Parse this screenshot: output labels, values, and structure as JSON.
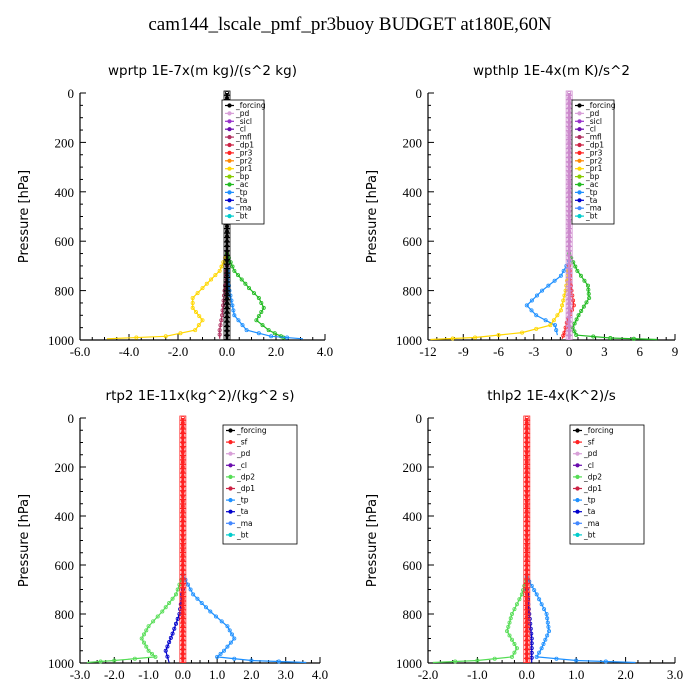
{
  "title": "cam144_lscale_pmf_pr3buoy  BUDGET at180E,60N",
  "chart_data": [
    {
      "type": "line",
      "title": "wprtp  1E-7x(m kg)/(s^2 kg)",
      "ylabel": "Pressure [hPa]",
      "xlim": [
        -6.0,
        4.0
      ],
      "xticks": [
        "-6.0",
        "-4.0",
        "-2.0",
        "0.0",
        "2.0",
        "4.0"
      ],
      "ylim": [
        1000,
        0
      ],
      "yticks": [
        "0",
        "200",
        "400",
        "600",
        "800",
        "1000"
      ],
      "legend": [
        "_forcing",
        "_pd",
        "_sicl",
        "_cl",
        "_mfl",
        "_dp1",
        "_pr3",
        "_pr2",
        "_pr1",
        "_bp",
        "_ac",
        "_tp",
        "_ta",
        "_ma",
        "_bt"
      ],
      "series": [
        {
          "name": "_forcing",
          "color": "#000000",
          "points": [
            [
              0,
              0
            ],
            [
              0,
              500
            ],
            [
              0,
              700
            ],
            [
              0,
              850
            ],
            [
              0,
              1000
            ]
          ]
        },
        {
          "name": "_pr1",
          "color": "#ffd700",
          "points": [
            [
              0,
              650
            ],
            [
              -0.3,
              720
            ],
            [
              -1.0,
              790
            ],
            [
              -1.4,
              830
            ],
            [
              -1.4,
              870
            ],
            [
              -1.0,
              920
            ],
            [
              -1.3,
              960
            ],
            [
              -2.5,
              985
            ],
            [
              -4.9,
              995
            ]
          ]
        },
        {
          "name": "_ac",
          "color": "#22bb22",
          "points": [
            [
              0,
              650
            ],
            [
              0.3,
              720
            ],
            [
              0.9,
              790
            ],
            [
              1.3,
              830
            ],
            [
              1.5,
              870
            ],
            [
              1.2,
              920
            ],
            [
              1.7,
              960
            ],
            [
              2.2,
              985
            ],
            [
              2.4,
              995
            ]
          ]
        },
        {
          "name": "_tp",
          "color": "#1e90ff",
          "points": [
            [
              0,
              700
            ],
            [
              0.1,
              800
            ],
            [
              0.3,
              900
            ],
            [
              0.8,
              960
            ],
            [
              1.8,
              985
            ],
            [
              3.1,
              995
            ]
          ]
        },
        {
          "name": "_mfl",
          "color": "#b03060",
          "points": [
            [
              0,
              700
            ],
            [
              -0.1,
              800
            ],
            [
              -0.2,
              900
            ],
            [
              -0.3,
              960
            ],
            [
              -0.3,
              995
            ]
          ]
        }
      ]
    },
    {
      "type": "line",
      "title": "wpthlp  1E-4x(m K)/s^2",
      "ylabel": "Pressure [hPa]",
      "xlim": [
        -12,
        9
      ],
      "xticks": [
        "-12",
        "-9",
        "-6",
        "-3",
        "0",
        "3",
        "6",
        "9"
      ],
      "ylim": [
        1000,
        0
      ],
      "yticks": [
        "0",
        "200",
        "400",
        "600",
        "800",
        "1000"
      ],
      "legend": [
        "_forcing",
        "_pd",
        "_sicl",
        "_cl",
        "_mfl",
        "_dp1",
        "_pr3",
        "_pr2",
        "_pr1",
        "_bp",
        "_ac",
        "_tp",
        "_ta",
        "_ma",
        "_bt"
      ],
      "series": [
        {
          "name": "_forcing",
          "color": "#cc88cc",
          "points": [
            [
              0,
              0
            ],
            [
              0,
              500
            ],
            [
              0,
              700
            ],
            [
              0,
              850
            ],
            [
              0,
              1000
            ]
          ]
        },
        {
          "name": "_tp",
          "color": "#1e90ff",
          "points": [
            [
              0,
              680
            ],
            [
              -0.7,
              740
            ],
            [
              -2.3,
              800
            ],
            [
              -3.6,
              860
            ],
            [
              -2.8,
              900
            ],
            [
              -1.2,
              940
            ],
            [
              -1.0,
              980
            ]
          ]
        },
        {
          "name": "_ac",
          "color": "#22bb22",
          "points": [
            [
              0,
              650
            ],
            [
              0.7,
              720
            ],
            [
              1.6,
              780
            ],
            [
              1.7,
              830
            ],
            [
              0.8,
              900
            ],
            [
              0.3,
              950
            ],
            [
              0.6,
              980
            ],
            [
              3.5,
              992
            ],
            [
              7.5,
              998
            ]
          ]
        },
        {
          "name": "_pr1",
          "color": "#ffd700",
          "points": [
            [
              0,
              700
            ],
            [
              -0.3,
              800
            ],
            [
              -0.7,
              880
            ],
            [
              -1.6,
              940
            ],
            [
              -4,
              970
            ],
            [
              -8,
              990
            ],
            [
              -11.8,
              998
            ]
          ]
        },
        {
          "name": "_mfl",
          "color": "#ff2222",
          "points": [
            [
              0,
              700
            ],
            [
              0.2,
              800
            ],
            [
              0.4,
              860
            ],
            [
              -0.2,
              930
            ],
            [
              -0.4,
              970
            ],
            [
              -0.6,
              995
            ]
          ]
        }
      ]
    },
    {
      "type": "line",
      "title": "rtp2  1E-11x(kg^2)/(kg^2 s)",
      "ylabel": "Pressure [hPa]",
      "xlim": [
        -3.0,
        4.0
      ],
      "xticks": [
        "-3.0",
        "-2.0",
        "-1.0",
        "0.0",
        "1.0",
        "2.0",
        "3.0",
        "4.0"
      ],
      "ylim": [
        1000,
        0
      ],
      "yticks": [
        "0",
        "200",
        "400",
        "600",
        "800",
        "1000"
      ],
      "legend": [
        "_forcing",
        "_sf",
        "_pd",
        "_cl",
        "_dp2",
        "_dp1",
        "_tp",
        "_ta",
        "_ma",
        "_bt"
      ],
      "series": [
        {
          "name": "_forcing",
          "color": "#ff2222",
          "points": [
            [
              0,
              0
            ],
            [
              0,
              500
            ],
            [
              0,
              700
            ],
            [
              0,
              850
            ],
            [
              0,
              1000
            ]
          ]
        },
        {
          "name": "_dp2",
          "color": "#55dd55",
          "points": [
            [
              0,
              640
            ],
            [
              -0.2,
              720
            ],
            [
              -0.6,
              790
            ],
            [
              -1.0,
              850
            ],
            [
              -1.2,
              900
            ],
            [
              -1.0,
              950
            ],
            [
              -0.8,
              975
            ],
            [
              -2.0,
              990
            ],
            [
              -2.8,
              998
            ]
          ]
        },
        {
          "name": "_tp",
          "color": "#1e90ff",
          "points": [
            [
              0,
              640
            ],
            [
              0.3,
              720
            ],
            [
              0.8,
              790
            ],
            [
              1.3,
              850
            ],
            [
              1.5,
              900
            ],
            [
              1.2,
              950
            ],
            [
              1.0,
              975
            ],
            [
              2.0,
              990
            ],
            [
              3.6,
              998
            ]
          ]
        },
        {
          "name": "_ta",
          "color": "#0000cc",
          "points": [
            [
              0,
              700
            ],
            [
              -0.1,
              800
            ],
            [
              -0.3,
              880
            ],
            [
              -0.5,
              950
            ],
            [
              -0.4,
              998
            ]
          ]
        }
      ]
    },
    {
      "type": "line",
      "title": "thlp2  1E-4x(K^2)/s",
      "ylabel": "Pressure [hPa]",
      "xlim": [
        -2.0,
        3.0
      ],
      "xticks": [
        "-2.0",
        "-1.0",
        "0.0",
        "1.0",
        "2.0",
        "3.0"
      ],
      "ylim": [
        1000,
        0
      ],
      "yticks": [
        "0",
        "200",
        "400",
        "600",
        "800",
        "1000"
      ],
      "legend": [
        "_forcing",
        "_sf",
        "_pd",
        "_cl",
        "_dp2",
        "_dp1",
        "_tp",
        "_ta",
        "_ma",
        "_bt"
      ],
      "series": [
        {
          "name": "_forcing",
          "color": "#ff2222",
          "points": [
            [
              0,
              0
            ],
            [
              0,
              500
            ],
            [
              0,
              700
            ],
            [
              0,
              850
            ],
            [
              0,
              1000
            ]
          ]
        },
        {
          "name": "_dp2",
          "color": "#55dd55",
          "points": [
            [
              0,
              650
            ],
            [
              -0.1,
              720
            ],
            [
              -0.3,
              800
            ],
            [
              -0.4,
              870
            ],
            [
              -0.2,
              940
            ],
            [
              -0.3,
              975
            ],
            [
              -1.0,
              990
            ],
            [
              -1.9,
              998
            ]
          ]
        },
        {
          "name": "_tp",
          "color": "#1e90ff",
          "points": [
            [
              0,
              650
            ],
            [
              0.2,
              720
            ],
            [
              0.4,
              800
            ],
            [
              0.45,
              870
            ],
            [
              0.3,
              940
            ],
            [
              0.2,
              975
            ],
            [
              1.0,
              990
            ],
            [
              2.2,
              998
            ]
          ]
        },
        {
          "name": "_ta",
          "color": "#0000cc",
          "points": [
            [
              0,
              700
            ],
            [
              0.05,
              800
            ],
            [
              0.1,
              900
            ],
            [
              0.1,
              998
            ]
          ]
        }
      ]
    }
  ]
}
